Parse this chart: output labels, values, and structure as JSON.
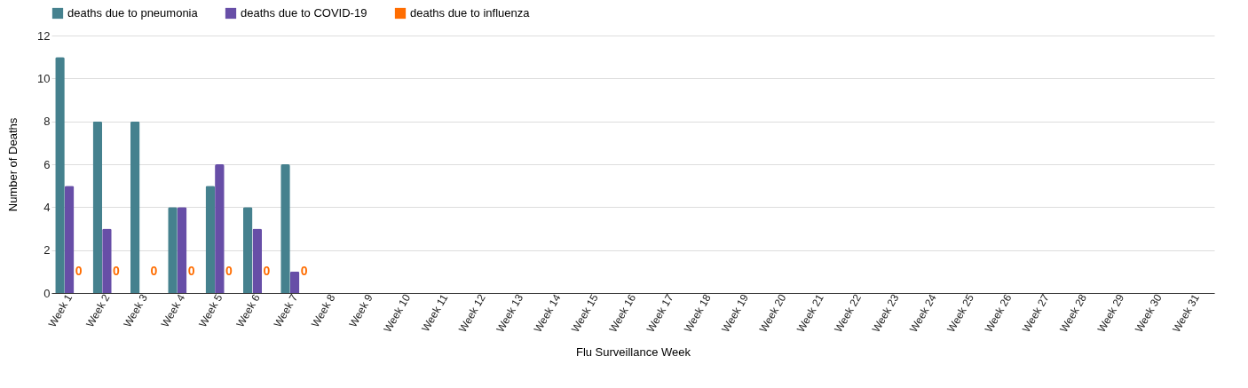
{
  "chart_data": {
    "type": "bar",
    "xlabel": "Flu Surveillance Week",
    "ylabel": "Number of Deaths",
    "categories": [
      "Week 1",
      "Week 2",
      "Week 3",
      "Week 4",
      "Week 5",
      "Week 6",
      "Week 7",
      "Week 8",
      "Week 9",
      "Week 10",
      "Week 11",
      "Week 12",
      "Week 13",
      "Week 14",
      "Week 15",
      "Week 16",
      "Week 17",
      "Week 18",
      "Week 19",
      "Week 20",
      "Week 21",
      "Week 22",
      "Week 23",
      "Week 24",
      "Week 25",
      "Week 26",
      "Week 27",
      "Week 28",
      "Week 29",
      "Week 30",
      "Week 31"
    ],
    "series": [
      {
        "name": "deaths due to pneumonia",
        "color": "#45818e",
        "values": [
          11,
          8,
          8,
          4,
          5,
          4,
          6,
          null,
          null,
          null,
          null,
          null,
          null,
          null,
          null,
          null,
          null,
          null,
          null,
          null,
          null,
          null,
          null,
          null,
          null,
          null,
          null,
          null,
          null,
          null,
          null
        ]
      },
      {
        "name": "deaths due to COVID-19",
        "color": "#674ea7",
        "values": [
          5,
          3,
          0,
          4,
          6,
          3,
          1,
          null,
          null,
          null,
          null,
          null,
          null,
          null,
          null,
          null,
          null,
          null,
          null,
          null,
          null,
          null,
          null,
          null,
          null,
          null,
          null,
          null,
          null,
          null,
          null
        ]
      },
      {
        "name": "deaths due to influenza",
        "color": "#ff6d01",
        "values": [
          0,
          0,
          0,
          0,
          0,
          0,
          0,
          null,
          null,
          null,
          null,
          null,
          null,
          null,
          null,
          null,
          null,
          null,
          null,
          null,
          null,
          null,
          null,
          null,
          null,
          null,
          null,
          null,
          null,
          null,
          null
        ],
        "value_labels": [
          "0",
          "0",
          "0",
          "0",
          "0",
          "0",
          "0",
          null,
          null,
          null,
          null,
          null,
          null,
          null,
          null,
          null,
          null,
          null,
          null,
          null,
          null,
          null,
          null,
          null,
          null,
          null,
          null,
          null,
          null,
          null,
          null
        ]
      }
    ],
    "ylim": [
      0,
      12
    ],
    "yticks": [
      0,
      2,
      4,
      6,
      8,
      10,
      12
    ],
    "grid": "y",
    "legend": "top"
  }
}
